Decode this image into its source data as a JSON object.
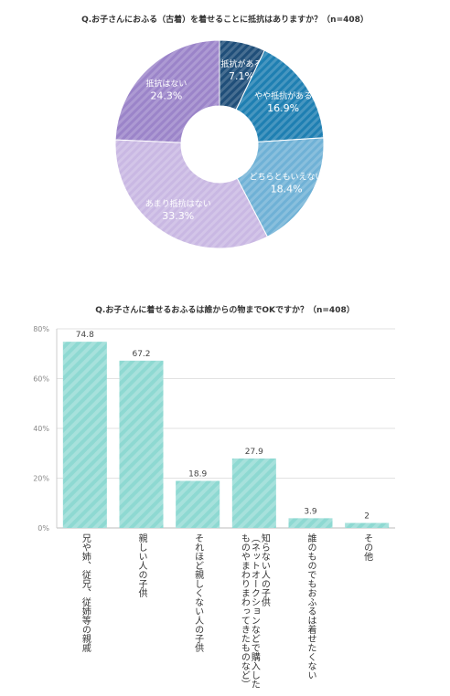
{
  "chart_data": [
    {
      "type": "pie",
      "title": "Q.お子さんにおふる（古着）を着せることに抵抗はありますか？（n=408）",
      "unit": "%",
      "slices": [
        {
          "label": "抵抗がある",
          "value": 7.1,
          "value_label": "7.1%",
          "color": "#1f4e79"
        },
        {
          "label": "やや抵抗がある",
          "value": 16.9,
          "value_label": "16.9%",
          "color": "#1e7fb2"
        },
        {
          "label": "どちらともいえない",
          "value": 18.4,
          "value_label": "18.4%",
          "color": "#6fb1d6"
        },
        {
          "label": "あまり抵抗はない",
          "value": 33.3,
          "value_label": "33.3%",
          "color": "#c9b8e3"
        },
        {
          "label": "抵抗はない",
          "value": 24.3,
          "value_label": "24.3%",
          "color": "#9b84c9"
        }
      ]
    },
    {
      "type": "bar",
      "title": "Q.お子さんに着せるおふるは誰からの物までOKですか？（n=408）",
      "categories": [
        "兄や姉、従兄、従姉等の親戚",
        "親しい人の子供",
        "それほど親しくない人の子供",
        "知らない人の子供\n（ネットオークションなどで購入した\nものやまわりまわってきたものなど）",
        "誰のものでもおふるは着せたくない",
        "その他"
      ],
      "values": [
        74.8,
        67.2,
        18.9,
        27.9,
        3.9,
        2
      ],
      "value_labels": [
        "74.8",
        "67.2",
        "18.9",
        "27.9",
        "3.9",
        "2"
      ],
      "ylim": [
        0,
        80
      ],
      "yticks": [
        "0%",
        "20%",
        "40%",
        "60%",
        "80%"
      ],
      "grid": true,
      "color": "#8ed9d2"
    }
  ]
}
